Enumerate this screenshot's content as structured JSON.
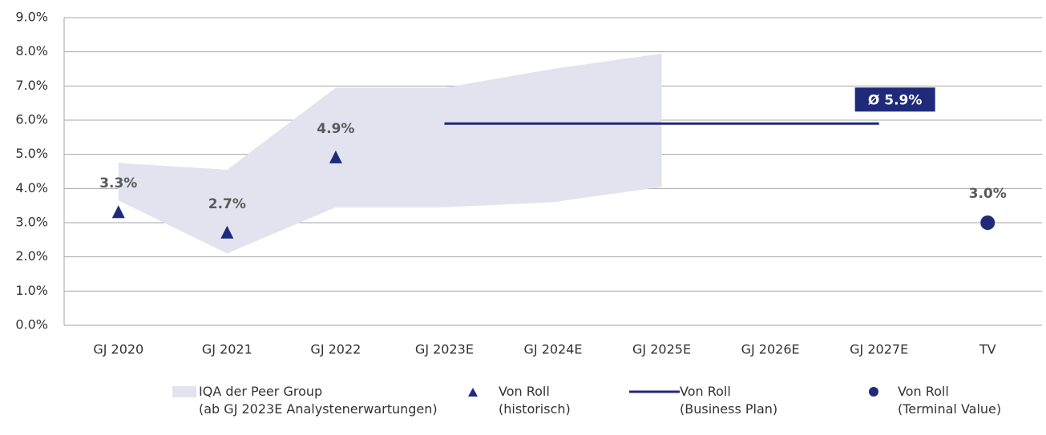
{
  "chart_data": {
    "type": "combo",
    "categories": [
      "GJ 2020",
      "GJ 2021",
      "GJ 2022",
      "GJ 2023E",
      "GJ 2024E",
      "GJ 2025E",
      "GJ 2026E",
      "GJ 2027E",
      "TV"
    ],
    "ylim": [
      0,
      9
    ],
    "yticks": [
      {
        "value": 0,
        "label": "0.0%"
      },
      {
        "value": 1,
        "label": "1.0%"
      },
      {
        "value": 2,
        "label": "2.0%"
      },
      {
        "value": 3,
        "label": "3.0%"
      },
      {
        "value": 4,
        "label": "4.0%"
      },
      {
        "value": 5,
        "label": "5.0%"
      },
      {
        "value": 6,
        "label": "6.0%"
      },
      {
        "value": 7,
        "label": "7.0%"
      },
      {
        "value": 8,
        "label": "8.0%"
      },
      {
        "value": 9,
        "label": "9.0%"
      }
    ],
    "grid": true,
    "series": [
      {
        "name": "IQA der Peer Group\n(ab GJ 2023E Analystenerwartungen)",
        "kind": "band",
        "color": "#e2e3ee",
        "lower": [
          3.65,
          2.1,
          3.45,
          3.45,
          3.6,
          4.05,
          null,
          null,
          null
        ],
        "upper": [
          4.75,
          4.55,
          6.95,
          6.95,
          7.5,
          7.95,
          null,
          null,
          null
        ]
      },
      {
        "name": "Von Roll\n(historisch)",
        "kind": "triangle",
        "color": "#1f2a7a",
        "values": [
          3.3,
          2.7,
          4.9,
          null,
          null,
          null,
          null,
          null,
          null
        ],
        "value_labels": [
          "3.3%",
          "2.7%",
          "4.9%",
          null,
          null,
          null,
          null,
          null,
          null
        ]
      },
      {
        "name": "Von Roll\n(Business Plan)",
        "kind": "line",
        "color": "#1f2a7a",
        "values": [
          null,
          null,
          null,
          5.9,
          5.9,
          5.9,
          5.9,
          5.9,
          null
        ],
        "annotation": "Ø 5.9%"
      },
      {
        "name": "Von Roll\n(Terminal Value)",
        "kind": "circle",
        "color": "#1f2a7a",
        "values": [
          null,
          null,
          null,
          null,
          null,
          null,
          null,
          null,
          3.0
        ],
        "value_labels": [
          null,
          null,
          null,
          null,
          null,
          null,
          null,
          null,
          "3.0%"
        ]
      }
    ]
  }
}
